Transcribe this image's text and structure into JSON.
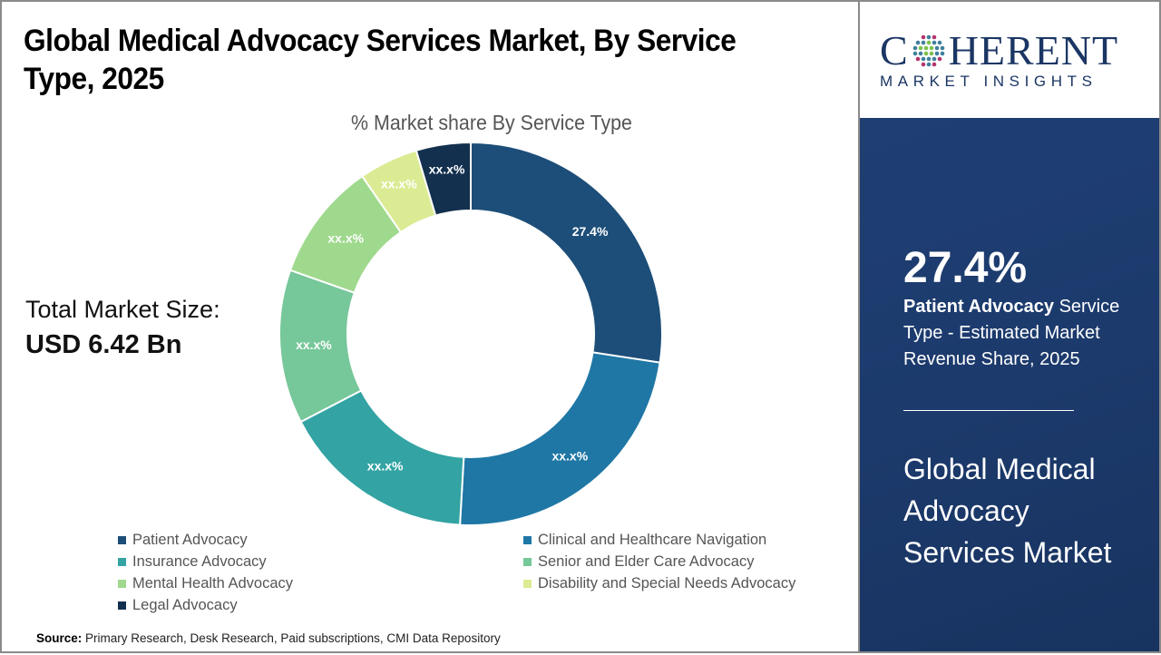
{
  "header": {
    "title": "Global Medical Advocacy Services Market, By Service Type, 2025"
  },
  "total_market": {
    "label": "Total Market Size:",
    "value": "USD 6.42 Bn"
  },
  "chart_data": {
    "type": "pie",
    "subtype": "donut",
    "title": "% Market share By Service Type",
    "categories": [
      "Patient Advocacy",
      "Clinical and Healthcare Navigation",
      "Insurance Advocacy",
      "Senior and Elder Care Advocacy",
      "Mental Health Advocacy",
      "Disability and Special Needs Advocacy",
      "Legal Advocacy"
    ],
    "values": [
      27.4,
      23.5,
      16.5,
      13.0,
      10.0,
      5.0,
      4.6
    ],
    "data_labels": [
      "27.4%",
      "xx.x%",
      "xx.x%",
      "xx.x%",
      "xx.x%",
      "xx.x%",
      "xx.x%"
    ],
    "colors": [
      "#1d4e79",
      "#1f77a5",
      "#33a3a3",
      "#76c799",
      "#9fd98d",
      "#dbeb94",
      "#14304f"
    ],
    "start_angle_deg": 0,
    "direction": "clockwise",
    "legend_position": "bottom",
    "legend_order": [
      "Patient Advocacy",
      "Clinical and Healthcare Navigation",
      "Insurance Advocacy",
      "Senior and Elder Care Advocacy",
      "Mental Health Advocacy",
      "Disability and Special Needs Advocacy",
      "Legal Advocacy"
    ]
  },
  "legend": {
    "items": [
      {
        "label": "Patient Advocacy",
        "color": "#1d4e79"
      },
      {
        "label": "Clinical and Healthcare Navigation",
        "color": "#1f77a5"
      },
      {
        "label": "Insurance Advocacy",
        "color": "#33a3a3"
      },
      {
        "label": "Senior and Elder Care Advocacy",
        "color": "#76c799"
      },
      {
        "label": "Mental Health Advocacy",
        "color": "#9fd98d"
      },
      {
        "label": "Disability and Special Needs Advocacy",
        "color": "#dbeb94"
      },
      {
        "label": "Legal Advocacy",
        "color": "#14304f"
      }
    ]
  },
  "source": {
    "label": "Source:",
    "text": "Primary Research, Desk Research, Paid subscriptions, CMI Data Repository"
  },
  "logo": {
    "main_left": "C",
    "main_right": "HERENT",
    "sub": "MARKET INSIGHTS"
  },
  "panel": {
    "highlight_value": "27.4%",
    "highlight_segment": "Patient Advocacy",
    "highlight_desc": "Service Type - Estimated Market Revenue Share, 2025",
    "market_name": "Global Medical Advocacy Services Market"
  },
  "colors": {
    "panel_bg": "#1c3a6c",
    "brand": "#1b3664"
  }
}
